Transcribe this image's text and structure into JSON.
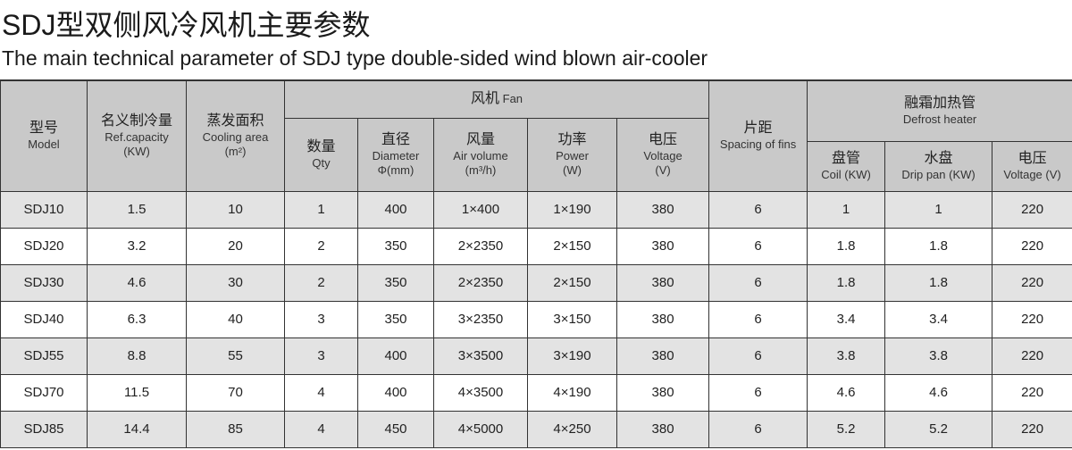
{
  "title": "SDJ型双侧风冷风机主要参数",
  "subtitle": "The main technical parameter of SDJ type double-sided wind blown air-cooler",
  "headers": {
    "model": {
      "cn": "型号",
      "en": "Model"
    },
    "capacity": {
      "cn": "名义制冷量",
      "en": "Ref.capacity",
      "unit": "(KW)"
    },
    "area": {
      "cn": "蒸发面积",
      "en": "Cooling area",
      "unit": "(m²)"
    },
    "fan": {
      "cn": "风机",
      "en": "Fan"
    },
    "qty": {
      "cn": "数量",
      "en": "Qty"
    },
    "diameter": {
      "cn": "直径",
      "en": "Diameter",
      "unit": "Φ(mm)"
    },
    "air_volume": {
      "cn": "风量",
      "en": "Air volume",
      "unit": "(m³/h)"
    },
    "power": {
      "cn": "功率",
      "en": "Power",
      "unit": "(W)"
    },
    "fan_voltage": {
      "cn": "电压",
      "en": "Voltage",
      "unit": "(V)"
    },
    "spacing": {
      "cn": "片距",
      "en": "Spacing of fins"
    },
    "defrost": {
      "cn": "融霜加热管",
      "en": "Defrost heater"
    },
    "coil": {
      "cn": "盘管",
      "en": "Coil (KW)"
    },
    "drip": {
      "cn": "水盘",
      "en": "Drip pan (KW)"
    },
    "heater_voltage": {
      "cn": "电压",
      "en": "Voltage (V)"
    }
  },
  "rows": [
    [
      "SDJ10",
      "1.5",
      "10",
      "1",
      "400",
      "1×400",
      "1×190",
      "380",
      "6",
      "1",
      "1",
      "220"
    ],
    [
      "SDJ20",
      "3.2",
      "20",
      "2",
      "350",
      "2×2350",
      "2×150",
      "380",
      "6",
      "1.8",
      "1.8",
      "220"
    ],
    [
      "SDJ30",
      "4.6",
      "30",
      "2",
      "350",
      "2×2350",
      "2×150",
      "380",
      "6",
      "1.8",
      "1.8",
      "220"
    ],
    [
      "SDJ40",
      "6.3",
      "40",
      "3",
      "350",
      "3×2350",
      "3×150",
      "380",
      "6",
      "3.4",
      "3.4",
      "220"
    ],
    [
      "SDJ55",
      "8.8",
      "55",
      "3",
      "400",
      "3×3500",
      "3×190",
      "380",
      "6",
      "3.8",
      "3.8",
      "220"
    ],
    [
      "SDJ70",
      "11.5",
      "70",
      "4",
      "400",
      "4×3500",
      "4×190",
      "380",
      "6",
      "4.6",
      "4.6",
      "220"
    ],
    [
      "SDJ85",
      "14.4",
      "85",
      "4",
      "450",
      "4×5000",
      "4×250",
      "380",
      "6",
      "5.2",
      "5.2",
      "220"
    ]
  ]
}
